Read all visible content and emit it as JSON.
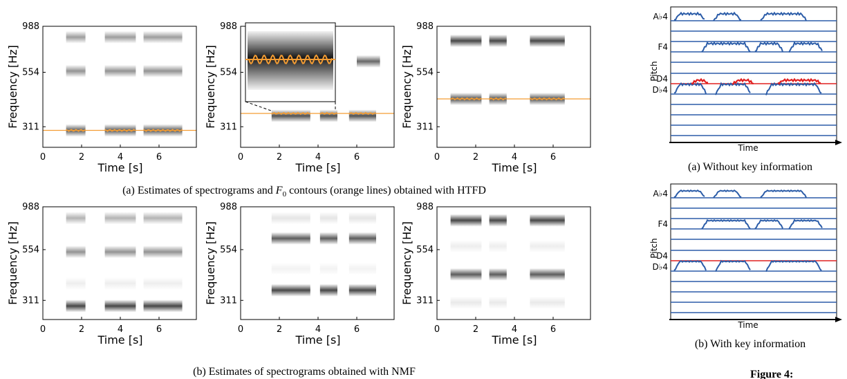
{
  "left_figure": {
    "panels": [
      {
        "y_label": "Frequency [Hz]",
        "x_label": "Time [s]",
        "yticks": [
          988,
          554,
          311
        ],
        "xticks": [
          0,
          2,
          4,
          6
        ]
      },
      {
        "y_label": "Frequency [Hz]",
        "x_label": "Time [s]",
        "yticks": [
          988,
          554,
          311
        ],
        "xticks": [
          0,
          2,
          4,
          6
        ]
      },
      {
        "y_label": "Frequency [Hz]",
        "x_label": "Time [s]",
        "yticks": [
          988,
          554,
          311
        ],
        "xticks": [
          0,
          2,
          4,
          6
        ]
      },
      {
        "y_label": "Frequency [Hz]",
        "x_label": "Time [s]",
        "yticks": [
          988,
          554,
          311
        ],
        "xticks": [
          0,
          2,
          4,
          6
        ]
      },
      {
        "y_label": "Frequency [Hz]",
        "x_label": "Time [s]",
        "yticks": [
          988,
          554,
          311
        ],
        "xticks": [
          0,
          2,
          4,
          6
        ]
      },
      {
        "y_label": "Frequency [Hz]",
        "x_label": "Time [s]",
        "yticks": [
          988,
          554,
          311
        ],
        "xticks": [
          0,
          2,
          4,
          6
        ]
      }
    ],
    "caption_a": {
      "before": "(a) Estimates of spectrograms and ",
      "symbol": "F",
      "subscript": "0",
      "after": " contours (orange lines) obtained with HTFD"
    },
    "caption_b": "(b) Estimates of spectrograms obtained with NMF"
  },
  "right_figure": {
    "panels": [
      {
        "pitch_labels": [
          "A♭4",
          "F4",
          "D4",
          "D♭4"
        ],
        "y_label": "Pitch",
        "x_label": "Time",
        "caption": "(a) Without key information"
      },
      {
        "pitch_labels": [
          "A♭4",
          "F4",
          "D4",
          "D♭4"
        ],
        "y_label": "Pitch",
        "x_label": "Time",
        "caption": "(b) With key information"
      }
    ]
  },
  "footer": "Figure 4:"
}
